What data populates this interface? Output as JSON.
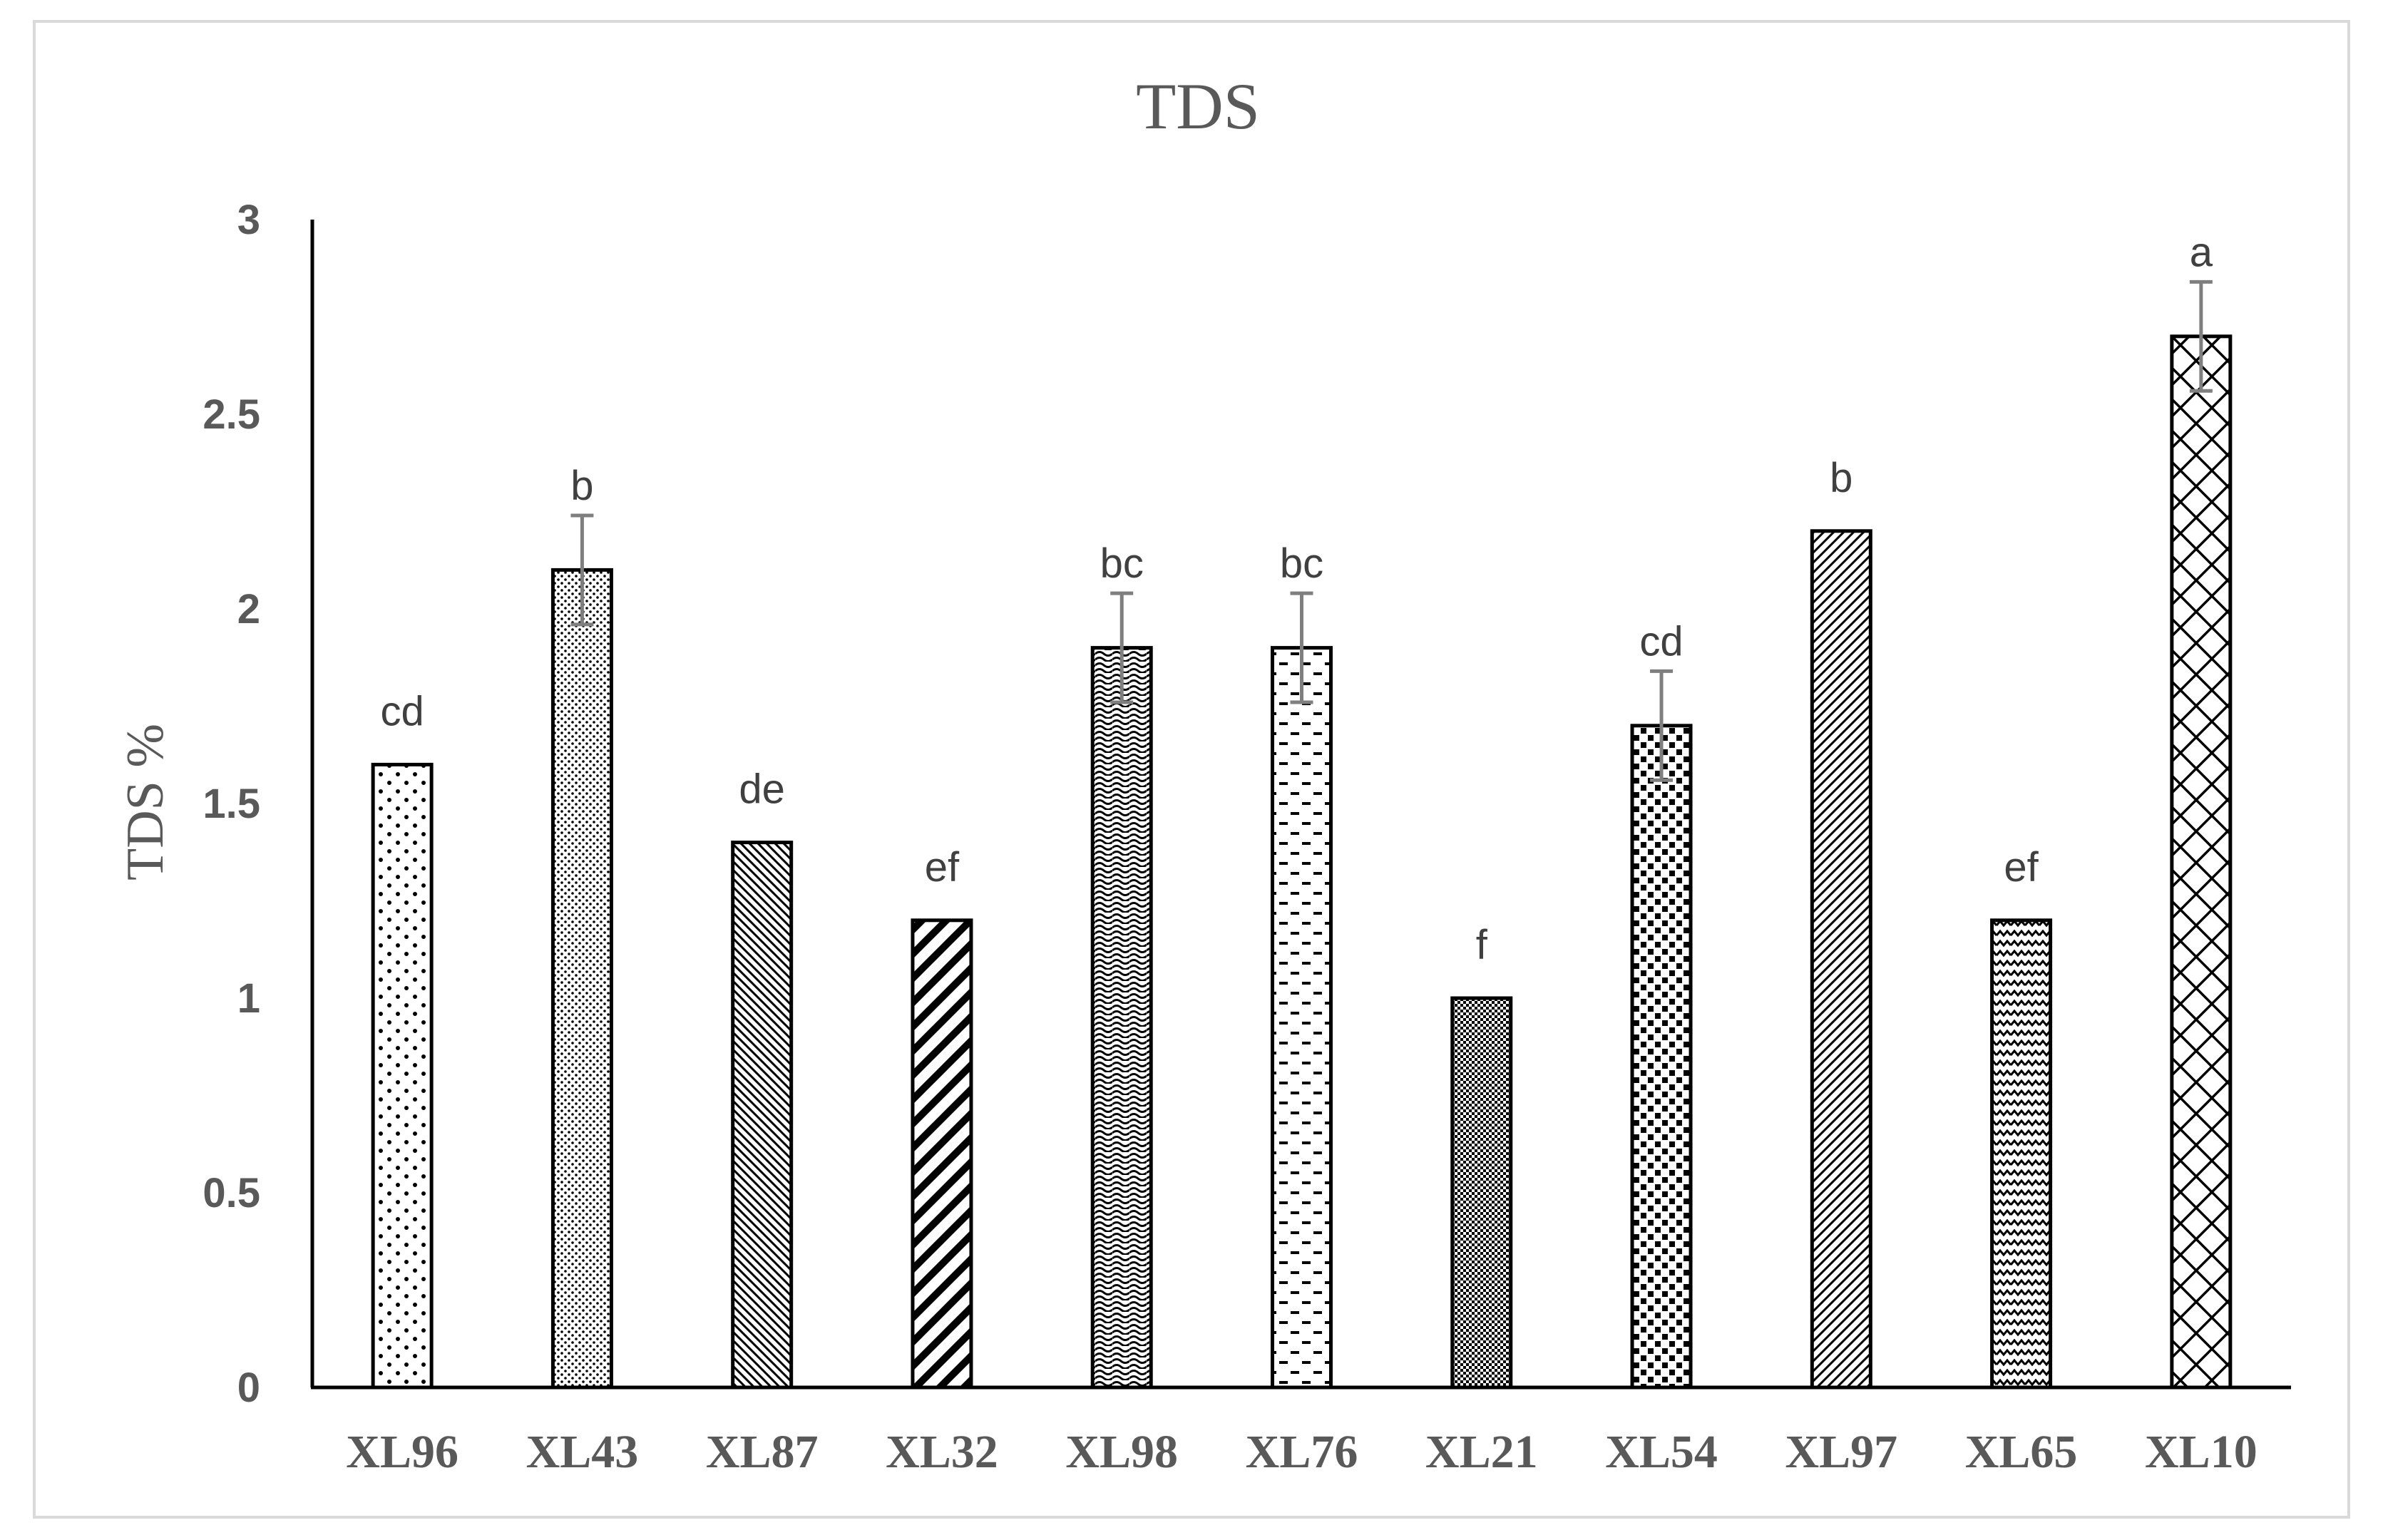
{
  "chart_data": {
    "type": "bar",
    "title": "TDS",
    "xlabel": "",
    "ylabel": "TDS %",
    "ylim": [
      0,
      3
    ],
    "yticks": [
      "0",
      "0.5",
      "1",
      "1.5",
      "2",
      "2.5",
      "3"
    ],
    "grid": false,
    "legend": "none",
    "categories": [
      "XL96",
      "XL43",
      "XL87",
      "XL32",
      "XL98",
      "XL76",
      "XL21",
      "XL54",
      "XL97",
      "XL65",
      "XL10"
    ],
    "values": [
      1.6,
      2.1,
      1.4,
      1.2,
      1.9,
      1.9,
      1.0,
      1.7,
      2.2,
      1.2,
      2.7
    ],
    "error": [
      0,
      0.14,
      0,
      0,
      0.14,
      0.14,
      0,
      0.14,
      0,
      0,
      0.14
    ],
    "significance_letters": [
      "cd",
      "b",
      "de",
      "ef",
      "bc",
      "bc",
      "f",
      "cd",
      "b",
      "ef",
      "a"
    ],
    "patterns": [
      "dots-sparse",
      "dots-dense",
      "diag-left-thin",
      "diag-right-wide",
      "waves",
      "dashes",
      "checker-fine",
      "checker-coarse",
      "diag-right-thin",
      "zigzag",
      "diamonds"
    ],
    "colors": {
      "bar_fill": "#ffffff",
      "bar_stroke": "#000000",
      "error_bar": "#7f7f7f",
      "text": "#595959",
      "axis": "#000000"
    }
  }
}
